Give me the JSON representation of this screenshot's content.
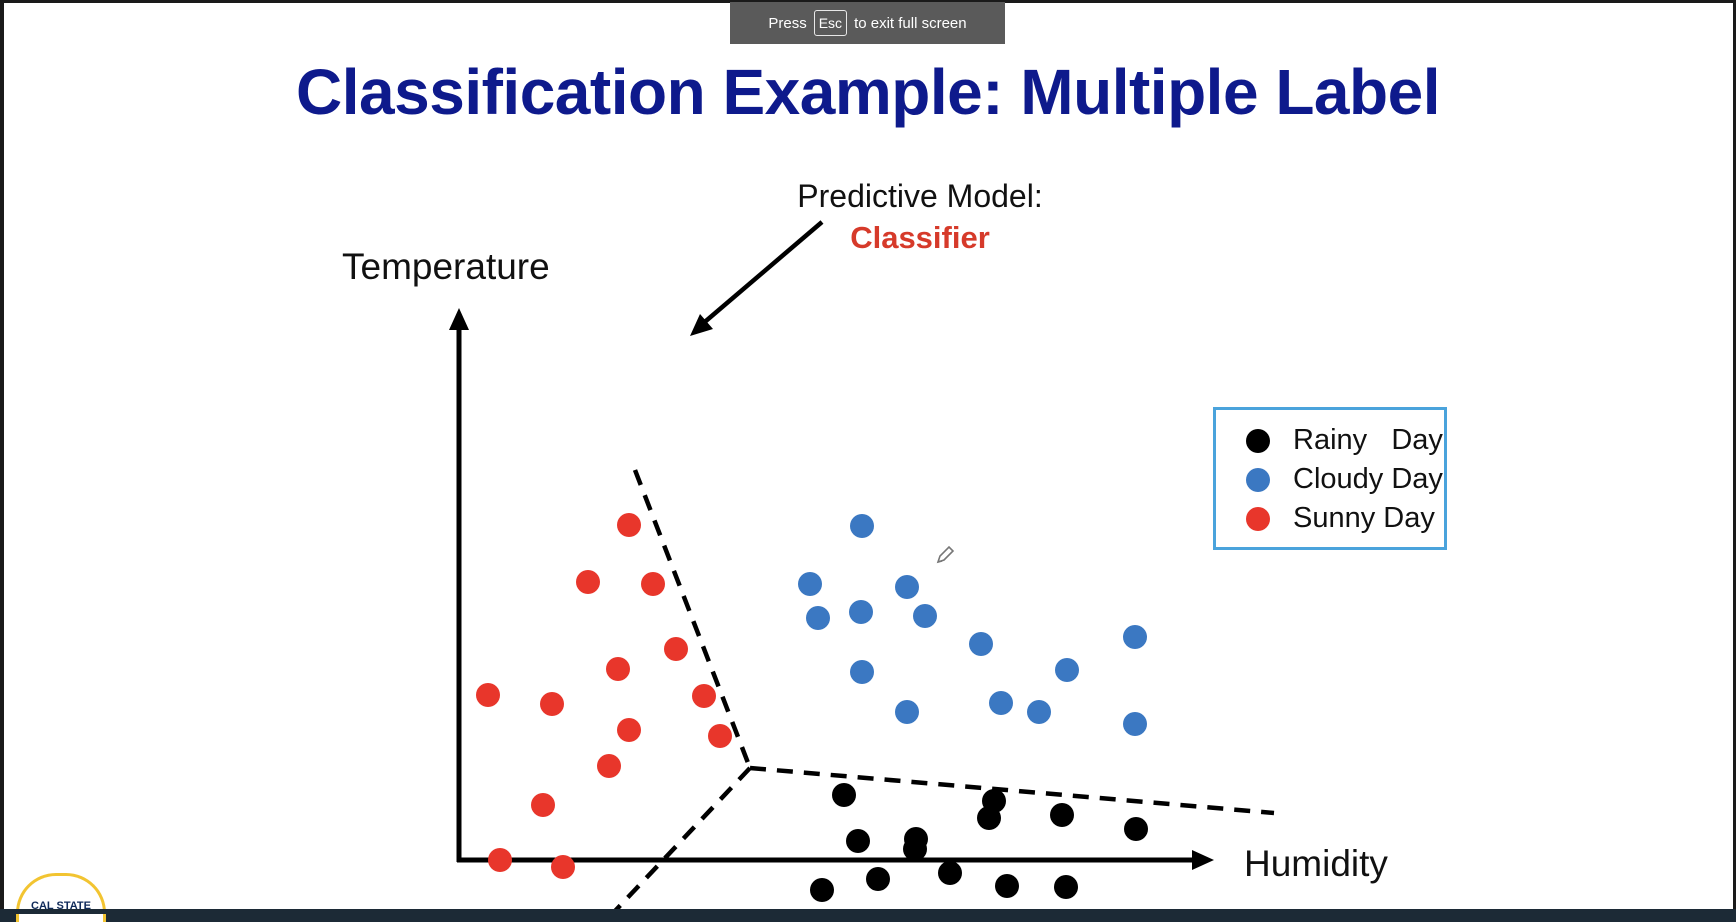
{
  "fullscreen_banner": {
    "press": "Press",
    "key": "Esc",
    "suffix": "to exit full screen"
  },
  "slide": {
    "title": "Classification Example: Multiple Label",
    "model_label": "Predictive Model:",
    "model_name": "Classifier",
    "logo_text": "CAL STATE"
  },
  "colors": {
    "title": "#0e1a8c",
    "rainy": "#000000",
    "cloudy": "#3b78c2",
    "sunny": "#e8362b",
    "legend_border": "#4aa3dc",
    "classifier_text": "#d63a2a"
  },
  "chart_data": {
    "type": "scatter",
    "xlabel": "Humidity",
    "ylabel": "Temperature",
    "grid": false,
    "legend_position": "right",
    "series": [
      {
        "name": "Rainy   Day",
        "color": "#000000",
        "points": [
          [
            363,
            -30
          ],
          [
            419,
            -19
          ],
          [
            491,
            -13
          ],
          [
            548,
            -26
          ],
          [
            607,
            -27
          ],
          [
            399,
            19
          ],
          [
            456,
            11
          ],
          [
            530,
            42
          ],
          [
            603,
            45
          ],
          [
            677,
            31
          ],
          [
            385,
            65
          ],
          [
            457,
            21
          ],
          [
            535,
            59
          ]
        ]
      },
      {
        "name": "Cloudy Day",
        "color": "#3b78c2",
        "points": [
          [
            403,
            334
          ],
          [
            351,
            276
          ],
          [
            448,
            273
          ],
          [
            359,
            242
          ],
          [
            402,
            248
          ],
          [
            466,
            244
          ],
          [
            522,
            216
          ],
          [
            608,
            190
          ],
          [
            676,
            223
          ],
          [
            403,
            188
          ],
          [
            448,
            148
          ],
          [
            542,
            157
          ],
          [
            580,
            148
          ],
          [
            676,
            136
          ]
        ]
      },
      {
        "name": "Sunny Day",
        "color": "#e8362b",
        "points": [
          [
            170,
            335
          ],
          [
            129,
            278
          ],
          [
            194,
            276
          ],
          [
            217,
            211
          ],
          [
            159,
            191
          ],
          [
            29,
            165
          ],
          [
            93,
            156
          ],
          [
            170,
            130
          ],
          [
            245,
            164
          ],
          [
            261,
            124
          ],
          [
            150,
            94
          ],
          [
            84,
            55
          ],
          [
            41,
            0
          ],
          [
            104,
            -7
          ]
        ]
      }
    ],
    "boundaries": [
      [
        [
          176,
          390
        ],
        [
          291,
          92
        ]
      ],
      [
        [
          291,
          92
        ],
        [
          815,
          47
        ]
      ],
      [
        [
          291,
          92
        ],
        [
          106,
          -104
        ]
      ]
    ],
    "notes": "axes have no tick labels; coordinates are approximate relative units"
  }
}
